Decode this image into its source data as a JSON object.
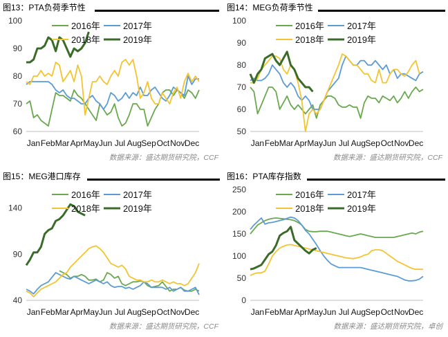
{
  "colors": {
    "2016": "#6aa84f",
    "2017": "#5b9bd5",
    "2018": "#f4c430",
    "2019": "#3a6b28"
  },
  "chart_data": [
    {
      "id": "p1",
      "panel_title": "图13：PTA负荷季节性",
      "source": "数据来源：盛达期货研究院，CCF",
      "type": "line",
      "xlabels": [
        "Jan",
        "Feb",
        "Mar",
        "Apr",
        "May",
        "Jun",
        "Jul",
        "Aug",
        "Sep",
        "Oct",
        "Nov",
        "Dec"
      ],
      "ylim": [
        60,
        100
      ],
      "yticks": [
        60,
        70,
        80,
        90,
        100
      ],
      "legend": [
        "2016年",
        "2017年",
        "2018年",
        "2019年"
      ],
      "series": [
        {
          "name": "2016年",
          "key": "2016",
          "values": [
            70,
            71,
            65,
            66,
            64,
            63,
            62,
            68,
            74,
            73,
            73,
            72,
            71,
            75,
            73,
            72,
            70,
            68,
            66,
            64,
            70,
            68,
            66,
            67,
            70,
            65,
            62,
            63,
            66,
            70,
            70,
            68,
            68,
            62,
            65,
            68,
            70,
            74,
            75,
            75,
            73,
            75,
            74,
            72,
            75,
            74,
            72,
            75
          ]
        },
        {
          "name": "2017年",
          "key": "2017",
          "values": [
            77,
            78,
            78,
            78,
            78,
            78,
            78,
            77,
            75,
            74,
            75,
            73,
            72,
            72,
            71,
            70,
            70,
            72,
            73,
            71,
            70,
            68,
            70,
            74,
            73,
            71,
            72,
            74,
            72,
            74,
            73,
            76,
            73,
            73,
            75,
            76,
            74,
            72,
            71,
            73,
            76,
            75,
            74,
            73,
            80,
            77,
            79,
            79
          ]
        },
        {
          "name": "2018年",
          "key": "2018",
          "values": [
            78,
            77,
            80,
            80,
            82,
            80,
            81,
            80,
            85,
            84,
            78,
            80,
            82,
            78,
            84,
            80,
            66,
            72,
            78,
            78,
            80,
            78,
            77,
            80,
            82,
            80,
            85,
            86,
            84,
            86,
            80,
            72,
            74,
            78,
            72,
            70,
            70,
            74,
            72,
            70,
            74,
            76,
            72,
            78,
            81,
            78,
            80,
            78
          ]
        },
        {
          "name": "2019年",
          "key": "2019",
          "values": [
            85,
            85,
            86,
            90,
            90,
            91,
            94,
            93,
            89,
            94,
            93,
            90,
            87,
            90,
            89,
            90,
            92,
            96
          ]
        }
      ]
    },
    {
      "id": "p2",
      "panel_title": "图14：MEG负荷季节性",
      "source": "数据来源：盛达期货研究院，CCF",
      "type": "line",
      "xlabels": [
        "Jan",
        "Feb",
        "Mar",
        "Apr",
        "May",
        "Jun",
        "Jul",
        "Aug",
        "Sep",
        "Oct",
        "Nov",
        "Dec"
      ],
      "ylim": [
        50,
        100
      ],
      "yticks": [
        50,
        60,
        70,
        80,
        90,
        100
      ],
      "legend": [
        "2016年",
        "2017年",
        "2018年",
        "2019年"
      ],
      "series": [
        {
          "name": "2016年",
          "key": "2016",
          "values": [
            70,
            68,
            58,
            62,
            66,
            70,
            70,
            68,
            60,
            63,
            66,
            62,
            60,
            62,
            60,
            58,
            60,
            62,
            56,
            62,
            64,
            66,
            66,
            65,
            62,
            61,
            61,
            62,
            61,
            61,
            56,
            63,
            66,
            65,
            65,
            63,
            66,
            65,
            64,
            66,
            63,
            65,
            68,
            65,
            68,
            70,
            68,
            69
          ]
        },
        {
          "name": "2017年",
          "key": "2017",
          "values": [
            73,
            74,
            73,
            73,
            74,
            76,
            80,
            78,
            76,
            72,
            70,
            72,
            70,
            66,
            64,
            66,
            64,
            60,
            60,
            60,
            64,
            68,
            70,
            72,
            74,
            80,
            84,
            82,
            80,
            80,
            82,
            82,
            80,
            80,
            82,
            80,
            78,
            80,
            76,
            78,
            74,
            76,
            76,
            75,
            74,
            73,
            76,
            77
          ]
        },
        {
          "name": "2018年",
          "key": "2018",
          "values": [
            72,
            72,
            74,
            78,
            80,
            82,
            84,
            84,
            83,
            78,
            76,
            80,
            78,
            72,
            64,
            50,
            58,
            60,
            58,
            60,
            64,
            68,
            72,
            76,
            80,
            85,
            84,
            82,
            80,
            80,
            78,
            76,
            76,
            73,
            72,
            78,
            72,
            72,
            76,
            78,
            78,
            76,
            75,
            77,
            80,
            82,
            76
          ]
        },
        {
          "name": "2019年",
          "key": "2019",
          "values": [
            76,
            72,
            76,
            78,
            83,
            84,
            85,
            82,
            80,
            83,
            86,
            80,
            78,
            74,
            72,
            70,
            70,
            68
          ]
        }
      ]
    },
    {
      "id": "p3",
      "panel_title": "图15：MEG港口库存",
      "source": "数据来源：盛达期货研究院，CCF",
      "type": "line",
      "xlabels": [
        "Jan",
        "Feb",
        "Mar",
        "Apr",
        "May",
        "Jun",
        "Jul",
        "Aug",
        "Sep",
        "Oct",
        "Nov",
        "Dec"
      ],
      "ylim": [
        40,
        160
      ],
      "yticks": [
        40,
        90,
        140
      ],
      "legend": [
        "2016年",
        "2017年",
        "2018年",
        "2019年"
      ],
      "series": [
        {
          "name": "2016年",
          "key": "2016",
          "values": [
            null,
            null,
            null,
            null,
            null,
            null,
            null,
            null,
            null,
            72,
            70,
            68,
            64,
            66,
            66,
            68,
            66,
            62,
            62,
            63,
            60,
            62,
            70,
            68,
            64,
            66,
            58,
            56,
            58,
            60,
            60,
            61,
            60,
            56,
            54,
            55,
            56,
            60,
            55,
            50,
            52,
            52,
            54,
            51,
            50,
            50,
            52,
            50
          ]
        },
        {
          "name": "2017年",
          "key": "2017",
          "values": [
            52,
            50,
            47,
            52,
            56,
            58,
            60,
            65,
            70,
            68,
            66,
            64,
            63,
            66,
            64,
            62,
            60,
            58,
            60,
            62,
            60,
            58,
            60,
            56,
            54,
            55,
            55,
            53,
            54,
            52,
            54,
            56,
            60,
            58,
            54,
            54,
            54,
            54,
            52,
            54,
            50,
            52,
            54,
            50,
            50,
            52,
            54,
            46
          ]
        },
        {
          "name": "2018年",
          "key": "2018",
          "values": [
            50,
            48,
            44,
            48,
            52,
            54,
            56,
            58,
            60,
            64,
            68,
            70,
            76,
            80,
            84,
            88,
            92,
            96,
            98,
            99,
            96,
            92,
            86,
            80,
            78,
            76,
            78,
            74,
            66,
            64,
            62,
            62,
            60,
            60,
            62,
            60,
            60,
            62,
            60,
            58,
            60,
            58,
            58,
            56,
            58,
            64,
            70,
            80
          ]
        },
        {
          "name": "2019年",
          "key": "2019",
          "values": [
            78,
            84,
            92,
            92,
            98,
            112,
            116,
            118,
            126,
            128,
            132,
            138,
            144,
            142,
            136,
            134,
            132
          ]
        }
      ]
    },
    {
      "id": "p4",
      "panel_title": "图16：PTA库存指数",
      "source": "数据来源：盛达期货研究院，卓创",
      "type": "line",
      "xlabels": [
        "Jan",
        "Feb",
        "Mar",
        "Apr",
        "May",
        "Jun",
        "Jul",
        "Aug",
        "Sep",
        "Oct",
        "Nov",
        "Dec"
      ],
      "ylim": [
        0,
        250
      ],
      "yticks": [
        0,
        50,
        100,
        150,
        200,
        250
      ],
      "legend": [
        "2016年",
        "2017年",
        "2018年",
        "2019年"
      ],
      "series": [
        {
          "name": "2016年",
          "key": "2016",
          "values": [
            150,
            160,
            170,
            175,
            180,
            183,
            185,
            186,
            185,
            184,
            183,
            182,
            180,
            176,
            170,
            160,
            156,
            155,
            155,
            156,
            156,
            156,
            154,
            152,
            150,
            148,
            146,
            144,
            146,
            148,
            150,
            148,
            146,
            144,
            142,
            142,
            142,
            142,
            142,
            142,
            144,
            146,
            148,
            150,
            152,
            150,
            154,
            156
          ]
        },
        {
          "name": "2017年",
          "key": "2017",
          "values": [
            160,
            170,
            178,
            186,
            172,
            175,
            176,
            178,
            180,
            182,
            185,
            188,
            186,
            180,
            170,
            158,
            150,
            138,
            126,
            112,
            100,
            90,
            82,
            78,
            74,
            74,
            74,
            74,
            74,
            74,
            74,
            72,
            70,
            68,
            66,
            64,
            62,
            60,
            58,
            56,
            54,
            50,
            46,
            44,
            44,
            45,
            48,
            54
          ]
        },
        {
          "name": "2018年",
          "key": "2018",
          "values": [
            56,
            60,
            62,
            62,
            66,
            82,
            100,
            110,
            118,
            122,
            125,
            126,
            124,
            122,
            120,
            118,
            116,
            114,
            112,
            110,
            108,
            106,
            104,
            102,
            100,
            98,
            96,
            95,
            94,
            96,
            98,
            102,
            104,
            112,
            114,
            114,
            112,
            106,
            100,
            94,
            88,
            84,
            80,
            76,
            72,
            70,
            70,
            70
          ]
        },
        {
          "name": "2019年",
          "key": "2019",
          "values": [
            70,
            72,
            76,
            80,
            92,
            104,
            110,
            124,
            146,
            152,
            156,
            166,
            136,
            128,
            120,
            112,
            106,
            114,
            118
          ]
        }
      ]
    }
  ]
}
